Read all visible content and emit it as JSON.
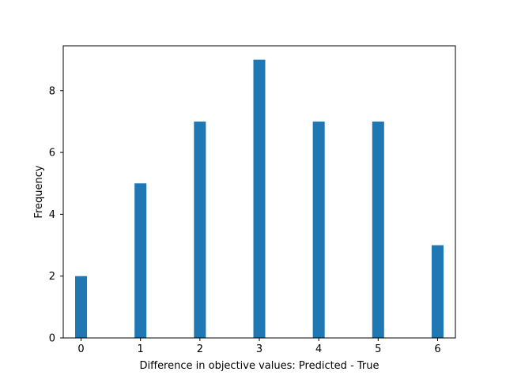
{
  "chart_data": {
    "type": "bar",
    "title": "",
    "xlabel": "Difference in objective values: Predicted - True",
    "ylabel": "Frequency",
    "bin_width": 0.2,
    "x": [
      0,
      1,
      2,
      3,
      4,
      5,
      6
    ],
    "values": [
      2,
      5,
      7,
      9,
      7,
      7,
      3
    ],
    "xlim": [
      -0.3,
      6.3
    ],
    "ylim": [
      0,
      9.45
    ],
    "xticks": [
      0,
      1,
      2,
      3,
      4,
      5,
      6
    ],
    "xtick_labels": [
      "0",
      "1",
      "2",
      "3",
      "4",
      "5",
      "6"
    ],
    "yticks": [
      0,
      2,
      4,
      6,
      8
    ],
    "ytick_labels": [
      "0",
      "2",
      "4",
      "6",
      "8"
    ],
    "bar_color": "#1f77b4",
    "grid": false,
    "legend": "none"
  }
}
